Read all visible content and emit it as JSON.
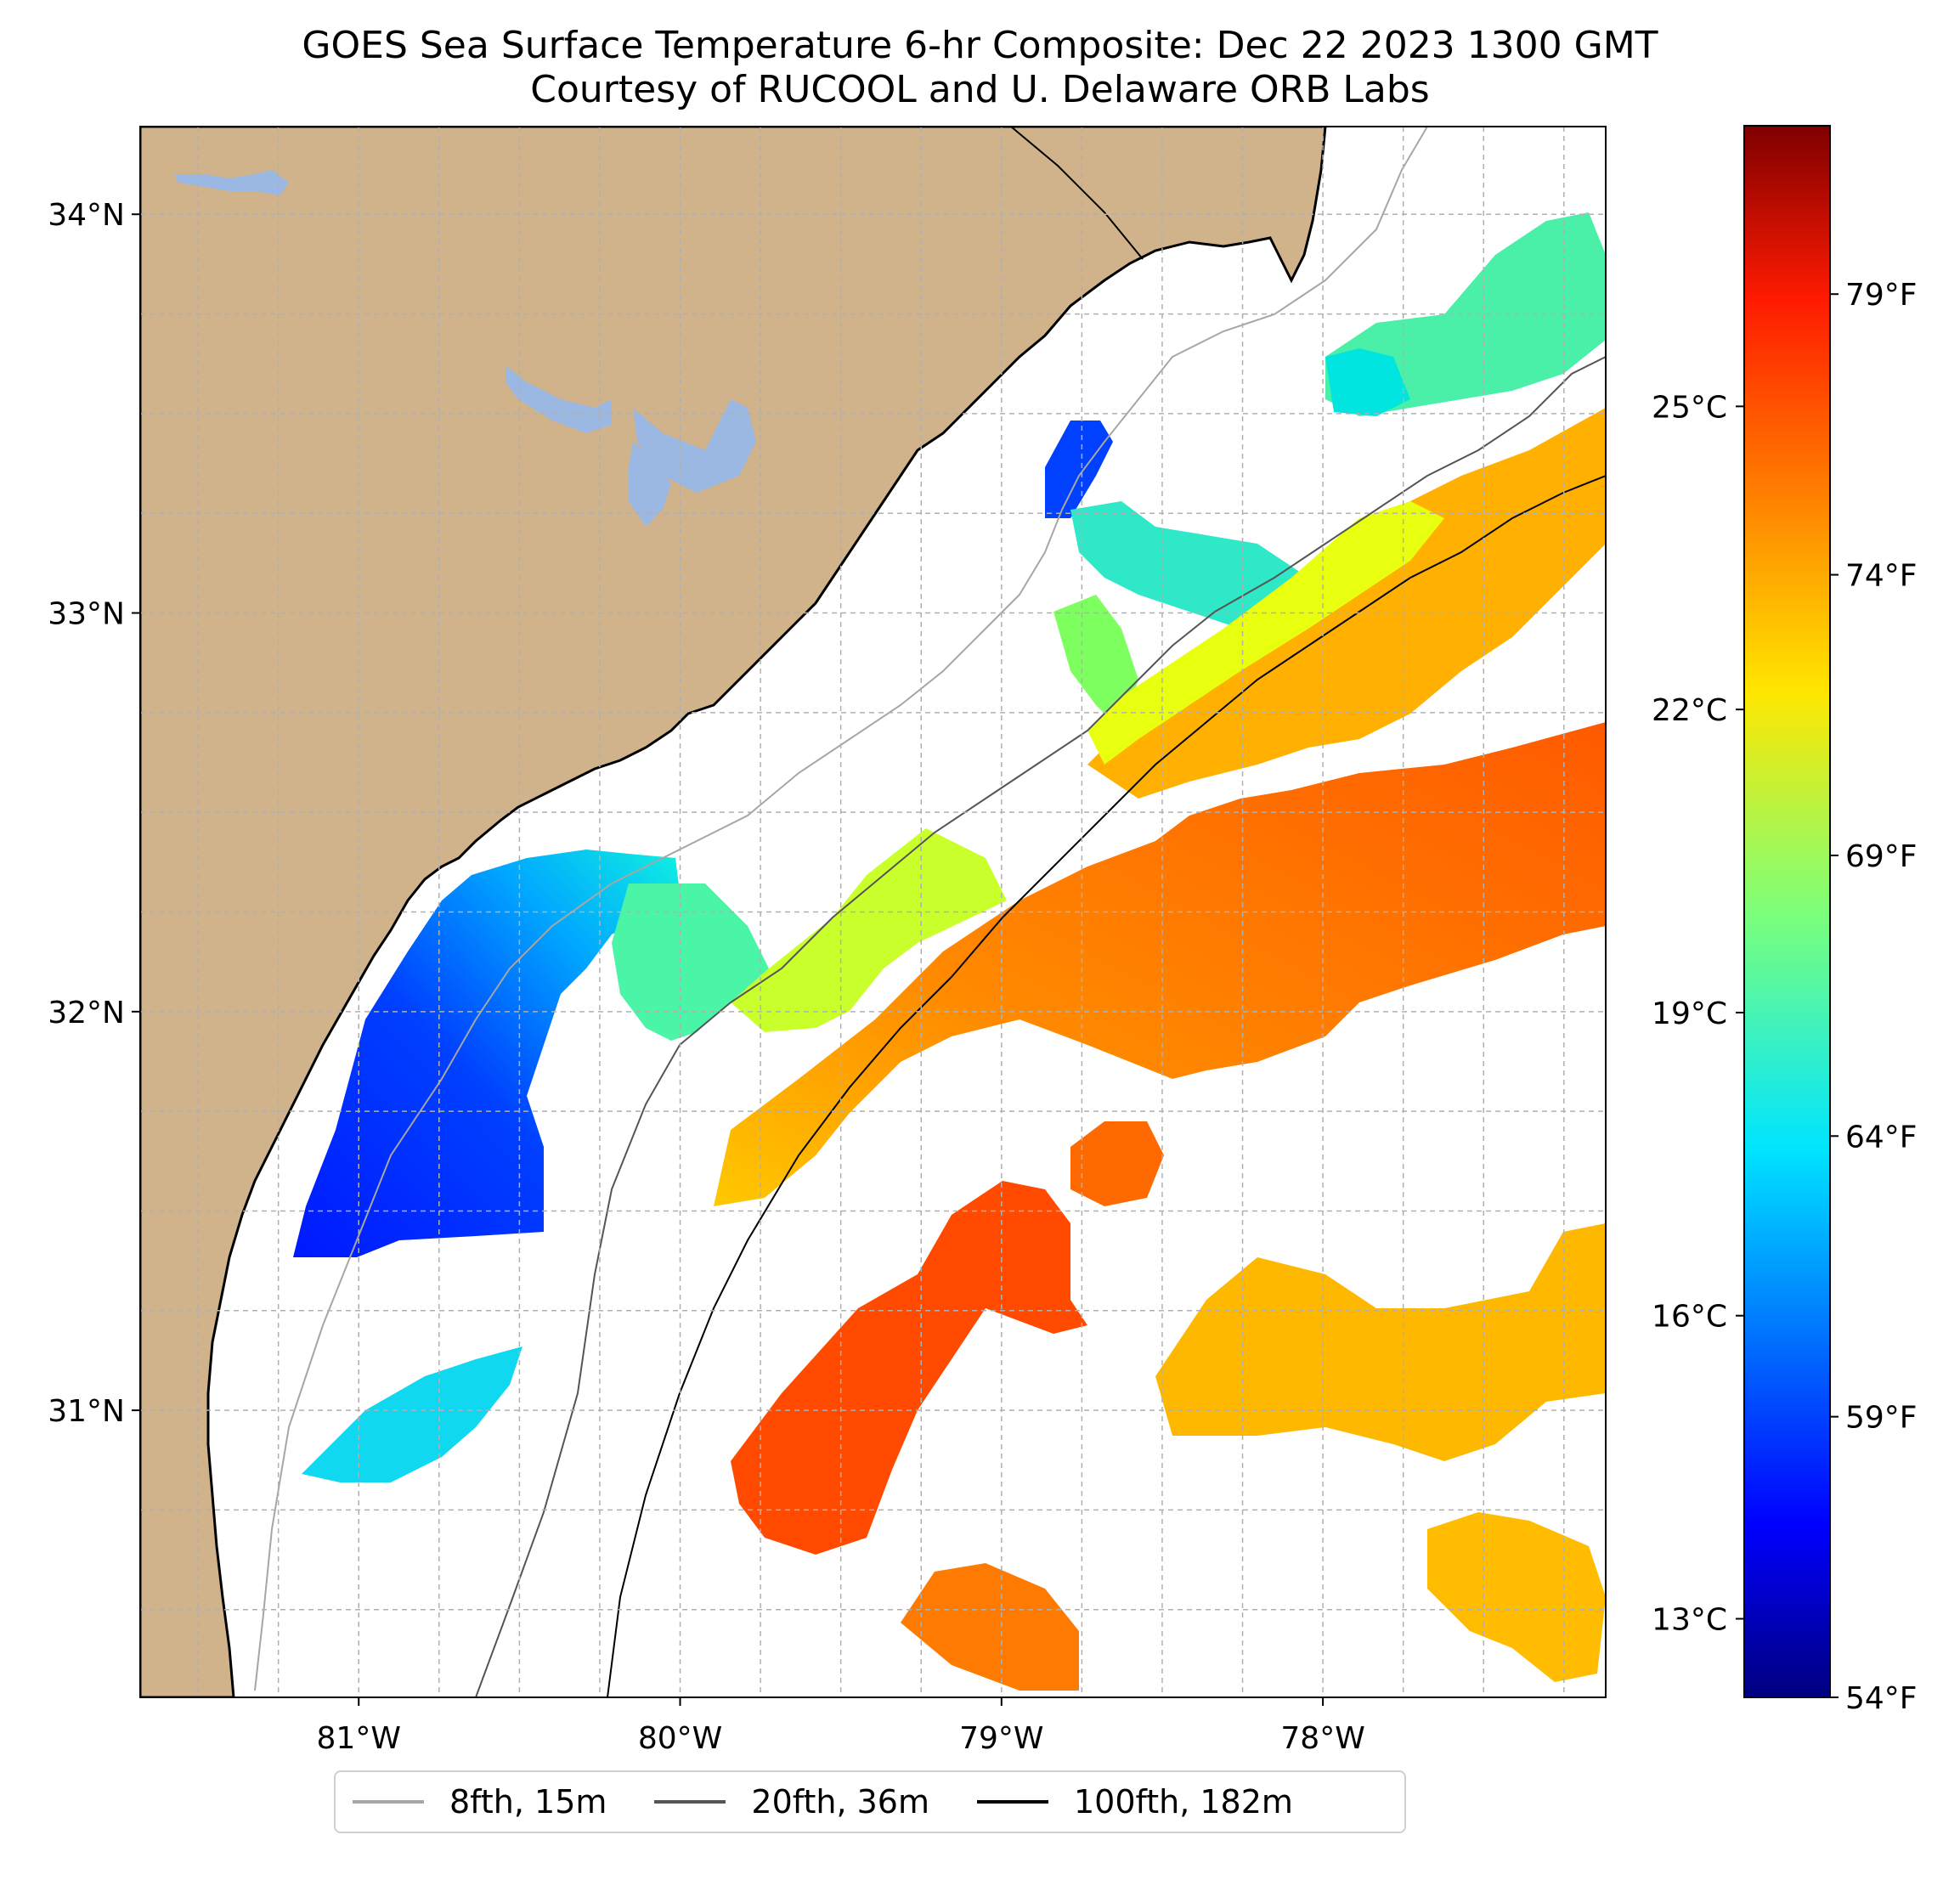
{
  "title": {
    "line1": "GOES Sea Surface Temperature 6-hr Composite: Dec 22 2023 1300 GMT",
    "line2": "Courtesy of RUCOOL and U. Delaware ORB Labs"
  },
  "map": {
    "lon_range": [
      -81.68,
      -77.12
    ],
    "lat_range": [
      30.28,
      34.22
    ],
    "lat_labels": [
      "34°N",
      "33°N",
      "32°N",
      "31°N"
    ],
    "lat_values": [
      34,
      33,
      32,
      31
    ],
    "lon_labels": [
      "81°W",
      "80°W",
      "79°W",
      "78°W"
    ],
    "lon_values": [
      -81,
      -80,
      -79,
      -78
    ],
    "colors": {
      "land": "#d0b38b",
      "lake": "#9bb8e3",
      "ocean": "#ffffff",
      "grid": "#b0b0b0"
    }
  },
  "colorbar": {
    "colormap": "jet",
    "celsius_labels": [
      "25°C",
      "22°C",
      "19°C",
      "16°C",
      "13°C"
    ],
    "celsius_values": [
      25,
      22,
      19,
      16,
      13
    ],
    "fahrenheit_labels": [
      "79°F",
      "74°F",
      "69°F",
      "64°F",
      "59°F",
      "54°F"
    ],
    "fahrenheit_values": [
      79,
      74,
      69,
      64,
      59,
      54
    ],
    "range_f": [
      54,
      82
    ]
  },
  "legend": {
    "items": [
      {
        "label": "8fth, 15m",
        "color": "#a6a6a6"
      },
      {
        "label": "20fth, 36m",
        "color": "#555555"
      },
      {
        "label": "100fth, 182m",
        "color": "#000000"
      }
    ]
  },
  "sst_patches": [
    {
      "name": "cold-coastal-georgia",
      "temp_f": 58
    },
    {
      "name": "cool-midshelf-georgia",
      "temp_f": 63
    },
    {
      "name": "green-shelf-patch",
      "temp_f": 68
    },
    {
      "name": "yellow-shelf-patch",
      "temp_f": 71
    },
    {
      "name": "gulf-stream-band",
      "temp_f": 77
    },
    {
      "name": "warm-offshore-south",
      "temp_f": 78
    },
    {
      "name": "warm-offshore-east",
      "temp_f": 74
    },
    {
      "name": "cold-patch-long-bay",
      "temp_f": 58
    },
    {
      "name": "north-carolina-shelf",
      "temp_f": 66
    }
  ]
}
